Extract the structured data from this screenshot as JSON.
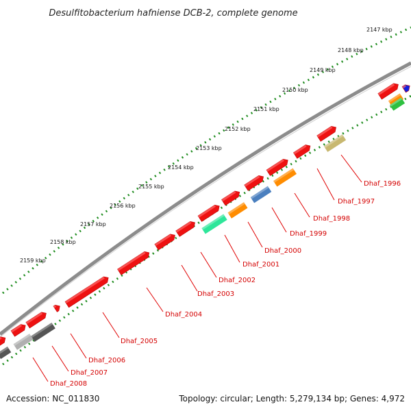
{
  "title": "Desulfitobacterium hafniense DCB-2, complete genome",
  "footer": {
    "accession": "Accession: NC_011830",
    "summary": "Topology: circular; Length: 5,279,134 bp; Genes: 4,972"
  },
  "colors": {
    "backbone": "#8a8a8a",
    "gene_default": "#ee1111",
    "label": "#d40000",
    "ticks": "#1e8c1e"
  },
  "ticks_kbp": [
    "2147 kbp",
    "2148 kbp",
    "2149 kbp",
    "2150 kbp",
    "2151 kbp",
    "2152 kbp",
    "2153 kbp",
    "2154 kbp",
    "2155 kbp",
    "2156 kbp",
    "2157 kbp",
    "2158 kbp",
    "2159 kbp"
  ],
  "gene_labels": [
    "Dhaf_1996",
    "Dhaf_1997",
    "Dhaf_1998",
    "Dhaf_1999",
    "Dhaf_2000",
    "Dhaf_2001",
    "Dhaf_2002",
    "Dhaf_2003",
    "Dhaf_2004",
    "Dhaf_2005",
    "Dhaf_2006",
    "Dhaf_2007",
    "Dhaf_2008"
  ],
  "feature_track_colors": [
    "#c8b870",
    "#ff8c00",
    "#4a7fbf",
    "#ff8c00",
    "#2ee69a",
    "#888888",
    "#b0b0b0",
    "#555555"
  ]
}
